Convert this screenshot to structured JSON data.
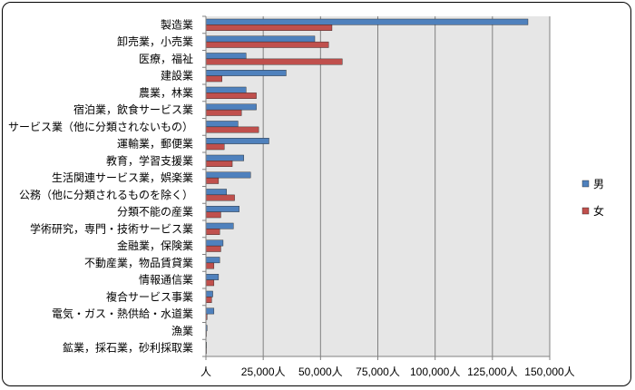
{
  "chart_data": {
    "type": "bar",
    "orientation": "horizontal",
    "categories": [
      "製造業",
      "卸売業，小売業",
      "医療，福祉",
      "建設業",
      "農業，林業",
      "宿泊業，飲食サービス業",
      "サービス業（他に分類されないもの）",
      "運輸業，郵便業",
      "教育，学習支援業",
      "生活関連サービス業，娯楽業",
      "公務（他に分類されるものを除く）",
      "分類不能の産業",
      "学術研究，専門・技術サービス業",
      "金融業，保険業",
      "不動産業，物品賃貸業",
      "情報通信業",
      "複合サービス事業",
      "電気・ガス・熱供給・水道業",
      "漁業",
      "鉱業，採石業，砂利採取業"
    ],
    "series": [
      {
        "name": "男",
        "color": "#4f81bd",
        "values": [
          140500,
          47500,
          17500,
          35000,
          17500,
          22000,
          14000,
          27500,
          16500,
          19500,
          9000,
          14500,
          12000,
          7500,
          6000,
          5500,
          3000,
          3500,
          500,
          300
        ]
      },
      {
        "name": "女",
        "color": "#c0504d",
        "values": [
          55000,
          53500,
          59500,
          7000,
          22000,
          15500,
          23000,
          8000,
          11500,
          5500,
          12500,
          6500,
          6000,
          6500,
          3500,
          3500,
          2500,
          500,
          200,
          100
        ]
      }
    ],
    "xlim": [
      0,
      150000
    ],
    "xticks": [
      0,
      25000,
      50000,
      75000,
      100000,
      125000,
      150000
    ],
    "tick_labels": [
      "人",
      "25,000人",
      "50,000人",
      "75,000人",
      "100,000人",
      "125,000人",
      "150,000人"
    ],
    "grid": true,
    "legend": {
      "position": "right",
      "entries": [
        "男",
        "女"
      ]
    },
    "title": "",
    "xlabel": "",
    "ylabel": "",
    "plot_background": "#e6e6e6"
  }
}
